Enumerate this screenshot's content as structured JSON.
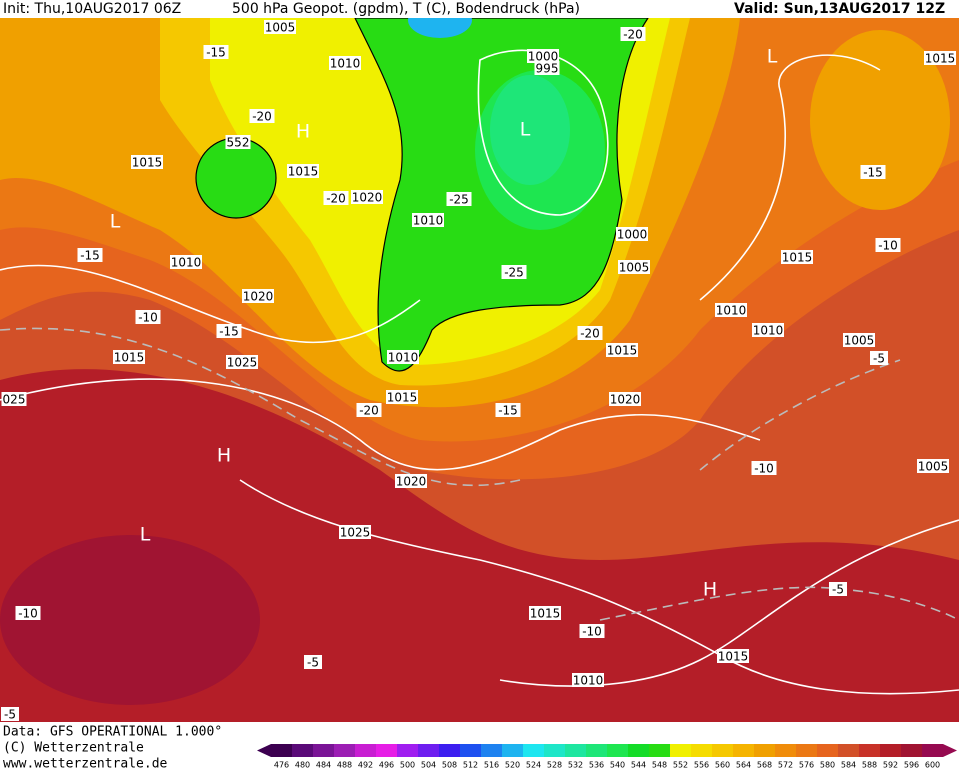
{
  "header": {
    "init": "Init: Thu,10AUG2017 06Z",
    "title": "500 hPa Geopot. (gpdm), T (C), Bodendruck (hPa)",
    "valid": "Valid: Sun,13AUG2017 12Z"
  },
  "map_labels": [
    "1005",
    "-15",
    "1010",
    "1000",
    "995",
    "-20",
    "L",
    "1015",
    "-20",
    "H",
    "552",
    "L",
    "1015",
    "1015",
    "-20",
    "1020",
    "1010",
    "-25",
    "-15",
    "L",
    "-15",
    "1010",
    "1000",
    "1005",
    "-25",
    "1015",
    "-10",
    "1020",
    "-10",
    "-15",
    "1010",
    "1010",
    "-20",
    "1005",
    "1015",
    "1025",
    "1010",
    "1015",
    "-5",
    "025",
    "1015",
    "-20",
    "-15",
    "1020",
    "H",
    "-10",
    "1005",
    "1020",
    "1025",
    "L",
    "H",
    "-5",
    "-10",
    "1015",
    "-10",
    "-5",
    "1015",
    "1010",
    "-5"
  ],
  "footer": {
    "data": "Data: GFS OPERATIONAL 1.000°",
    "copyright": "(C) Wetterzentrale",
    "url": "www.wetterzentrale.de"
  },
  "colorbar": {
    "ticks": [
      476,
      480,
      484,
      488,
      492,
      496,
      500,
      504,
      508,
      512,
      516,
      520,
      524,
      528,
      532,
      536,
      540,
      544,
      548,
      552,
      556,
      560,
      564,
      568,
      572,
      576,
      580,
      584,
      588,
      592,
      596,
      600
    ],
    "colors": [
      "#3c0050",
      "#5a0a78",
      "#7a1496",
      "#9c1eb4",
      "#c81ed2",
      "#e61ee6",
      "#a01ef0",
      "#6e1ef0",
      "#3c1ef0",
      "#1e50f0",
      "#1e82f0",
      "#1eb4f0",
      "#1ee6f0",
      "#1ee6c8",
      "#1ee6a0",
      "#1ee678",
      "#1ee650",
      "#14dc28",
      "#28dc14",
      "#f0f000",
      "#f5dc00",
      "#f5c800",
      "#f5b400",
      "#f0a000",
      "#f08c0a",
      "#eb7814",
      "#e6641e",
      "#d25028",
      "#c83228",
      "#b41e28",
      "#a01432",
      "#960a50"
    ]
  }
}
